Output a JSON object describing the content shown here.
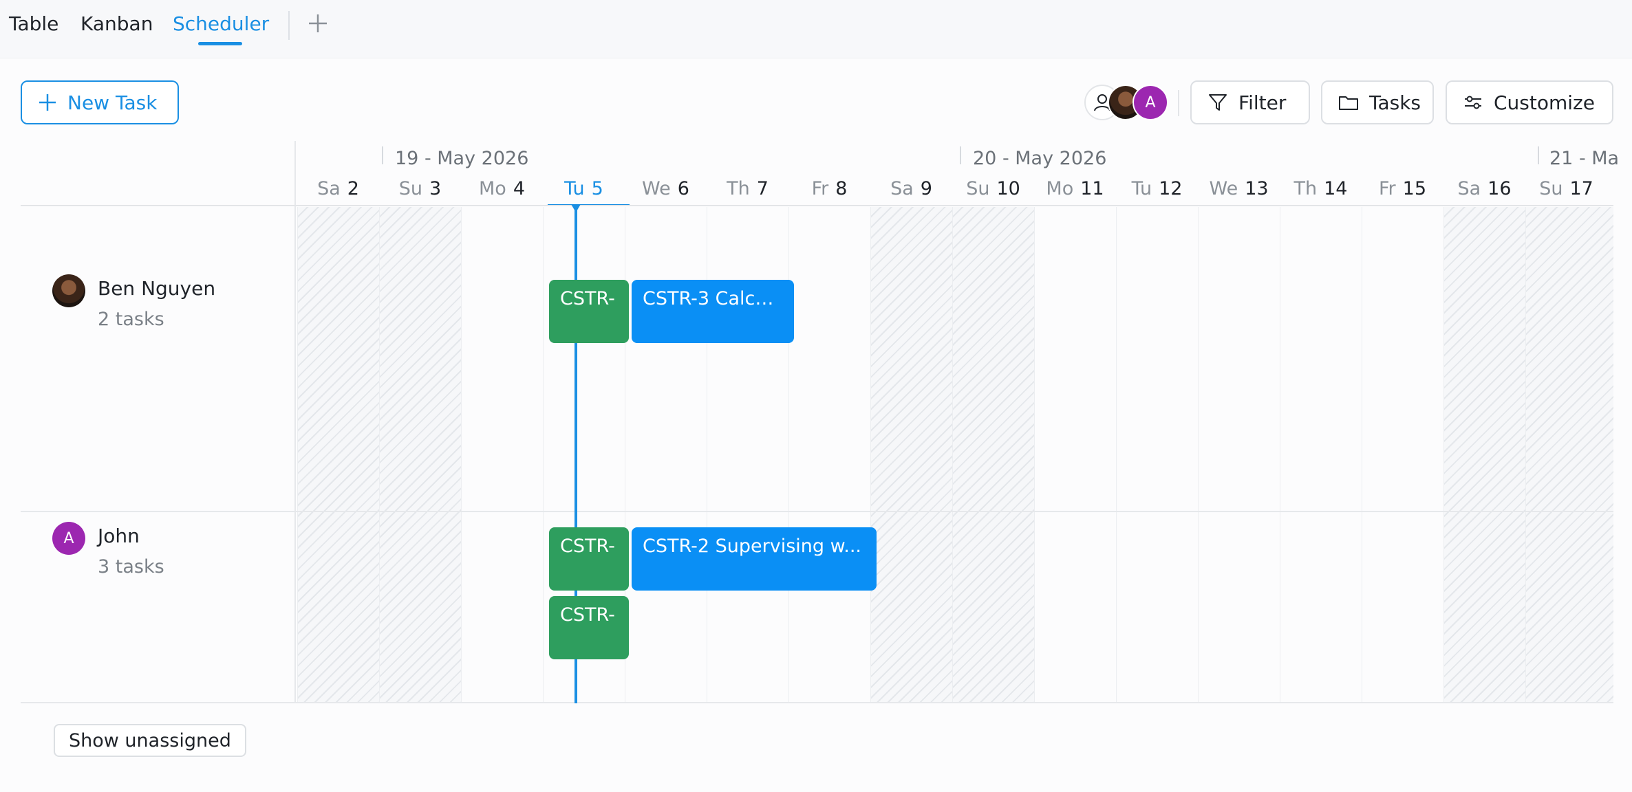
{
  "tabs": [
    {
      "label": "Table"
    },
    {
      "label": "Kanban"
    },
    {
      "label": "Scheduler",
      "active": true
    }
  ],
  "toolbar": {
    "new_task_label": "New Task",
    "filter_label": "Filter",
    "tasks_label": "Tasks",
    "customize_label": "Customize",
    "avatar_letter": "A"
  },
  "timeline": {
    "months": [
      {
        "label": "19 - May 2026"
      },
      {
        "label": "20 - May 2026"
      },
      {
        "label": "21 - Ma"
      }
    ],
    "days": [
      {
        "dw": "Sa",
        "dn": "2",
        "weekend": true
      },
      {
        "dw": "Su",
        "dn": "3",
        "weekend": true
      },
      {
        "dw": "Mo",
        "dn": "4"
      },
      {
        "dw": "Tu",
        "dn": "5",
        "today": true
      },
      {
        "dw": "We",
        "dn": "6"
      },
      {
        "dw": "Th",
        "dn": "7"
      },
      {
        "dw": "Fr",
        "dn": "8"
      },
      {
        "dw": "Sa",
        "dn": "9",
        "weekend": true
      },
      {
        "dw": "Su",
        "dn": "10",
        "weekend": true
      },
      {
        "dw": "Mo",
        "dn": "11"
      },
      {
        "dw": "Tu",
        "dn": "12"
      },
      {
        "dw": "We",
        "dn": "13"
      },
      {
        "dw": "Th",
        "dn": "14"
      },
      {
        "dw": "Fr",
        "dn": "15"
      },
      {
        "dw": "Sa",
        "dn": "16",
        "weekend": true
      },
      {
        "dw": "Su",
        "dn": "17",
        "weekend": true
      }
    ]
  },
  "resources": [
    {
      "name": "Ben Nguyen",
      "count": "2 tasks",
      "avatar": "photo",
      "events": [
        {
          "label": "CSTR-",
          "color": "green"
        },
        {
          "label": "CSTR-3 Calcu...",
          "color": "blue"
        }
      ]
    },
    {
      "name": "John",
      "count": "3 tasks",
      "avatar": "letter",
      "avatar_letter": "A",
      "events": [
        {
          "label": "CSTR-",
          "color": "green"
        },
        {
          "label": "CSTR-2 Supervising w...",
          "color": "blue"
        },
        {
          "label": "CSTR-",
          "color": "green"
        }
      ]
    }
  ],
  "footer": {
    "show_unassigned_label": "Show unassigned"
  },
  "colors": {
    "accent": "#1a8fe3",
    "event_green": "#2e9e5e",
    "event_blue": "#0a8ff5",
    "avatar_purple": "#9c27b0"
  }
}
